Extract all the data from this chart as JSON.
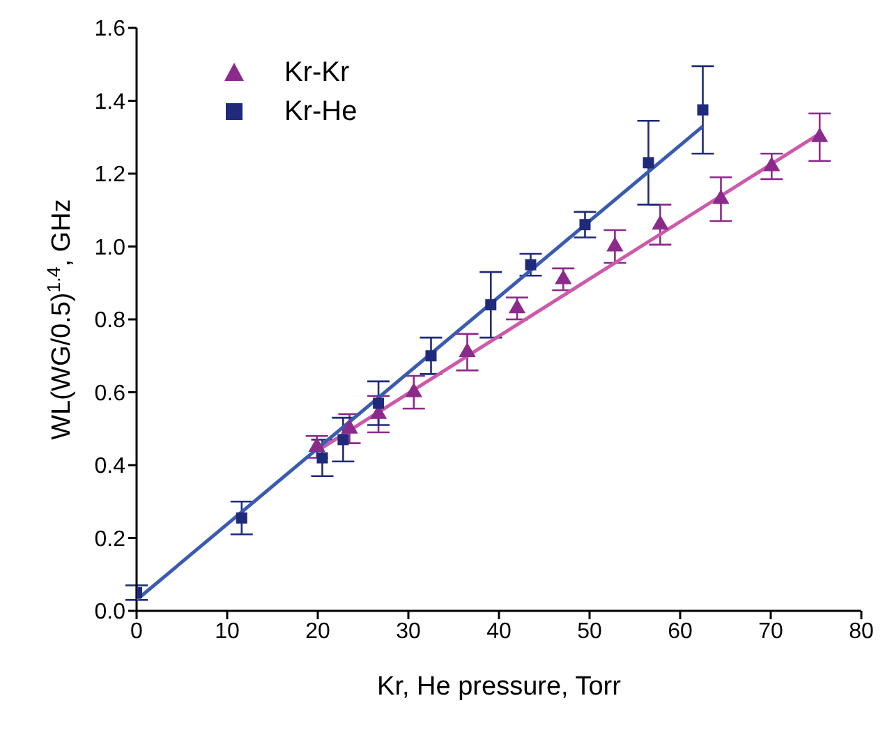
{
  "chart_data": {
    "type": "scatter",
    "xlabel": "Kr, He pressure, Torr",
    "ylabel": "WL(WG/0.5)$^{1.4}$, GHz",
    "xlim": [
      0,
      80
    ],
    "xticks": [
      0,
      10,
      20,
      30,
      40,
      50,
      60,
      70,
      80
    ],
    "ylim": [
      0,
      1.6
    ],
    "yticks": [
      {
        "value": 0,
        "label": "0.0"
      },
      {
        "value": 0.2,
        "label": "0.2"
      },
      {
        "value": 0.4,
        "label": "0.4"
      },
      {
        "value": 0.6,
        "label": "0.6"
      },
      {
        "value": 0.8,
        "label": "0.8"
      },
      {
        "value": 1.0,
        "label": "1.0"
      },
      {
        "value": 1.2,
        "label": "1.2"
      },
      {
        "value": 1.4,
        "label": "1.4"
      },
      {
        "value": 1.6,
        "label": "1.6"
      }
    ],
    "grid": false,
    "legend": "top left",
    "series": [
      {
        "type": "line",
        "color": "#cc5aaa",
        "x": [
          20,
          75.4
        ],
        "values": [
          0.44,
          1.31
        ],
        "marker": "none"
      },
      {
        "type": "line",
        "color": "#3a5bb0",
        "x": [
          0,
          62.5
        ],
        "values": [
          0.03,
          1.33
        ],
        "marker": "none"
      },
      {
        "name": "Kr-Kr",
        "color": "#8b2a8b",
        "marker": "triangle",
        "x": [
          19.9,
          23.5,
          26.7,
          30.6,
          36.5,
          42,
          47.1,
          52.8,
          57.8,
          64.5,
          70.1,
          75.4
        ],
        "values": [
          0.45,
          0.5,
          0.54,
          0.6,
          0.71,
          0.83,
          0.91,
          1.0,
          1.06,
          1.13,
          1.22,
          1.3
        ],
        "errors": [
          0.03,
          0.04,
          0.05,
          0.045,
          0.05,
          0.03,
          0.03,
          0.045,
          0.055,
          0.06,
          0.035,
          0.065
        ]
      },
      {
        "name": "Kr-He",
        "color": "#1f2a7a",
        "marker": "square",
        "x": [
          0,
          11.6,
          20.5,
          22.8,
          26.7,
          32.5,
          39.1,
          43.5,
          49.5,
          56.5,
          62.5
        ],
        "values": [
          0.05,
          0.255,
          0.42,
          0.47,
          0.57,
          0.7,
          0.84,
          0.95,
          1.06,
          1.23,
          1.375
        ],
        "errors": [
          0.02,
          0.045,
          0.05,
          0.06,
          0.06,
          0.05,
          0.09,
          0.03,
          0.035,
          0.115,
          0.12
        ]
      }
    ]
  }
}
